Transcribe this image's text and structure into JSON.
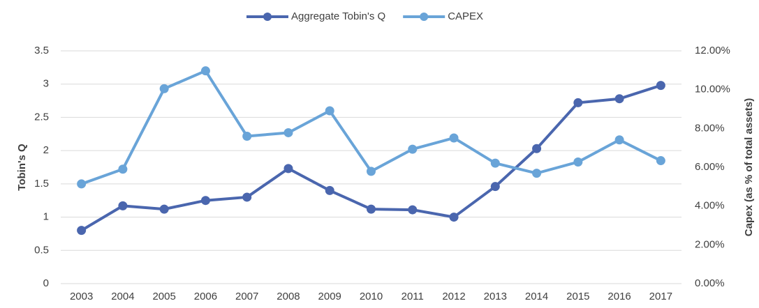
{
  "chart_data": {
    "type": "line",
    "categories": [
      "2003",
      "2004",
      "2005",
      "2006",
      "2007",
      "2008",
      "2009",
      "2010",
      "2011",
      "2012",
      "2013",
      "2014",
      "2015",
      "2016",
      "2017"
    ],
    "series": [
      {
        "name": "Aggregate Tobin's Q",
        "color": "#4a66ae",
        "values": [
          0.8,
          1.17,
          1.12,
          1.25,
          1.3,
          1.73,
          1.4,
          1.12,
          1.11,
          1.0,
          1.46,
          2.03,
          2.72,
          2.78,
          2.98
        ]
      },
      {
        "name": "CAPEX",
        "color": "#69a4d8",
        "axis": "y2",
        "values": [
          5.14,
          5.9,
          10.05,
          10.97,
          7.6,
          7.78,
          8.91,
          5.79,
          6.93,
          7.51,
          6.21,
          5.69,
          6.27,
          7.41,
          6.34
        ]
      }
    ],
    "ylabel": "Tobin's Q",
    "y2label": "Capex (as % of total assets)",
    "ylim": [
      0,
      3.5
    ],
    "yticks": [
      0,
      0.5,
      1,
      1.5,
      2,
      2.5,
      3,
      3.5
    ],
    "y2lim": [
      0,
      12
    ],
    "y2ticks": [
      {
        "value": 0,
        "label": "0.00%"
      },
      {
        "value": 2,
        "label": "2.00%"
      },
      {
        "value": 4,
        "label": "4.00%"
      },
      {
        "value": 6,
        "label": "6.00%"
      },
      {
        "value": 8,
        "label": "8.00%"
      },
      {
        "value": 10,
        "label": "10.00%"
      },
      {
        "value": 12,
        "label": "12.00%"
      }
    ],
    "grid": true,
    "legend": "top"
  }
}
